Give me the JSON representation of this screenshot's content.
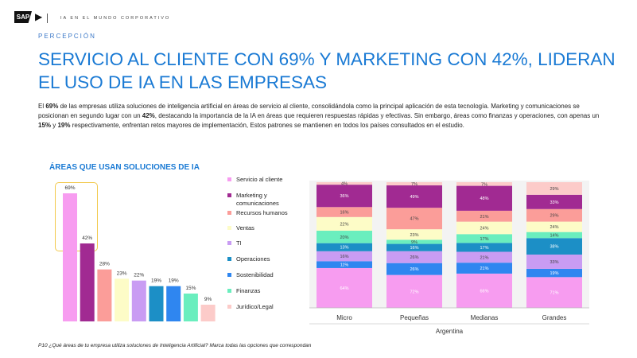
{
  "header": {
    "caption": "IA EN EL MUNDO CORPORATIVO",
    "section": "PERCEPCIÓN",
    "title": "SERVICIO AL CLIENTE CON 69% Y MARKETING CON 42%, LIDERAN EL USO DE IA EN LAS EMPRESAS",
    "logo_text": "SAP"
  },
  "body_text": {
    "p1a": "El ",
    "p1b": "69%",
    "p1c": " de las empresas utiliza soluciones de inteligencia artificial en áreas de servicio al cliente, consolidándola como la principal aplicación de esta tecnología. Marketing y comunicaciones se posicionan en segundo lugar con un ",
    "p1d": "42%",
    "p1e": ", destacando la importancia de la IA en áreas que requieren respuestas rápidas y efectivas. Sin embargo, áreas como finanzas y operaciones, con apenas un ",
    "p1f": "15%",
    "p1g": " y ",
    "p1h": "19%",
    "p1i": " respectivamente, enfrentan retos mayores de implementación, Estos patrones se mantienen en todos los países consultados en el estudio."
  },
  "footnote": "P10 ¿Qué áreas de tu empresa utiliza soluciones de Inteligencia Artificial? Marca todas las opciones que correspondan",
  "chart_data": [
    {
      "type": "bar",
      "title": "ÁREAS QUE USAN SOLUCIONES DE IA",
      "categories": [
        "Servicio al cliente",
        "Marketing y comunicaciones",
        "Recursos humanos",
        "Ventas",
        "TI",
        "Operaciones",
        "Sostenibilidad",
        "Finanzas",
        "Jurídico/Legal"
      ],
      "values": [
        69,
        42,
        28,
        23,
        22,
        19,
        19,
        15,
        9
      ],
      "labels": [
        "69%",
        "42%",
        "28%",
        "23%",
        "22%",
        "19%",
        "19%",
        "15%",
        "9%"
      ],
      "colors": [
        "#f79cf0",
        "#a12a92",
        "#fb9d99",
        "#fdfcc7",
        "#c99cf3",
        "#1c8fc6",
        "#2f86f0",
        "#6aeebe",
        "#fccbc9"
      ],
      "highlight_top": 2,
      "ylim": [
        0,
        75
      ]
    },
    {
      "type": "bar",
      "stacked": true,
      "xlabel": "Argentina",
      "categories": [
        "Micro",
        "Pequeñas",
        "Medianas",
        "Grandes"
      ],
      "series": [
        {
          "name": "Servicio al cliente",
          "color": "#f79cf0",
          "values": [
            64,
            72,
            66,
            71
          ],
          "labels": [
            "64%",
            "72%",
            "66%",
            "71%"
          ]
        },
        {
          "name": "Sostenibilidad",
          "color": "#2f86f0",
          "values": [
            11,
            26,
            21,
            19
          ],
          "labels": [
            "11%",
            "26%",
            "21%",
            "19%"
          ]
        },
        {
          "name": "TI",
          "color": "#c99cf3",
          "values": [
            16,
            26,
            21,
            33
          ],
          "labels": [
            "16%",
            "26%",
            "21%",
            "33%"
          ]
        },
        {
          "name": "Operaciones",
          "color": "#1c8fc6",
          "values": [
            13,
            16,
            17,
            38
          ],
          "labels": [
            "13%",
            "16%",
            "17%",
            "38%"
          ]
        },
        {
          "name": "Finanzas",
          "color": "#6aeebe",
          "values": [
            20,
            9,
            17,
            14
          ],
          "labels": [
            "20%",
            "9%",
            "17%",
            "14%"
          ]
        },
        {
          "name": "Ventas",
          "color": "#fdfcc7",
          "values": [
            22,
            23,
            24,
            24
          ],
          "labels": [
            "22%",
            "23%",
            "24%",
            "24%"
          ]
        },
        {
          "name": "Recursos humanos",
          "color": "#fb9d99",
          "values": [
            16,
            47,
            21,
            29
          ],
          "labels": [
            "16%",
            "47%",
            "21%",
            "29%"
          ]
        },
        {
          "name": "Marketing y comunicaciones",
          "color": "#a12a92",
          "values": [
            36,
            49,
            48,
            33
          ],
          "labels": [
            "36%",
            "49%",
            "48%",
            "33%"
          ]
        },
        {
          "name": "Jurídico/Legal",
          "color": "#fccbc9",
          "values": [
            4,
            7,
            7,
            29
          ],
          "labels": [
            "4%",
            "7%",
            "7%",
            "29%"
          ]
        }
      ]
    }
  ]
}
